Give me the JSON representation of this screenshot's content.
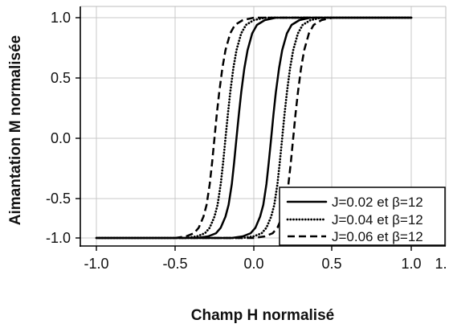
{
  "chart_data": {
    "type": "line",
    "xlabel": "Champ H normalisé",
    "ylabel": "Aimantation M normalisée",
    "xlim": [
      -1.1,
      1.2
    ],
    "ylim": [
      -1.1,
      1.1
    ],
    "x_ticks": [
      "-1.0",
      "-0.5",
      "0.0",
      "0.5",
      "1.0",
      "1."
    ],
    "y_ticks": [
      "1.0",
      "0.5",
      "0.0",
      "-0.5",
      "-1.0"
    ],
    "grid": true,
    "legend_position": "bottom-right",
    "series": [
      {
        "name": "J=0.02 et β=12",
        "style": "solid",
        "color": "#000000",
        "x": [
          1.0,
          0.14,
          0.07,
          0.02,
          -0.01,
          -0.04,
          -0.06,
          -0.08,
          -0.095,
          -0.11,
          -0.125,
          -0.14,
          -0.16,
          -0.18,
          -0.21,
          -0.24,
          -0.29,
          -0.36,
          -1.0,
          -0.14,
          -0.07,
          -0.02,
          0.01,
          0.04,
          0.06,
          0.08,
          0.095,
          0.11,
          0.125,
          0.14,
          0.16,
          0.18,
          0.21,
          0.24,
          0.29,
          0.36,
          1.0
        ],
        "y": [
          1.0,
          1.0,
          0.98,
          0.94,
          0.87,
          0.73,
          0.58,
          0.38,
          0.2,
          0.0,
          -0.2,
          -0.38,
          -0.58,
          -0.73,
          -0.87,
          -0.94,
          -0.98,
          -1.0,
          -1.0,
          -1.0,
          -0.98,
          -0.94,
          -0.87,
          -0.73,
          -0.58,
          -0.38,
          -0.2,
          0.0,
          0.2,
          0.38,
          0.58,
          0.73,
          0.87,
          0.94,
          0.98,
          1.0,
          1.0
        ]
      },
      {
        "name": "J=0.04 et β=12",
        "style": "dotted",
        "color": "#000000",
        "x": [
          1.0,
          0.07,
          0.0,
          -0.05,
          -0.08,
          -0.11,
          -0.13,
          -0.15,
          -0.165,
          -0.18,
          -0.195,
          -0.21,
          -0.23,
          -0.25,
          -0.28,
          -0.31,
          -0.36,
          -0.43,
          -1.0,
          -0.07,
          0.0,
          0.05,
          0.08,
          0.11,
          0.13,
          0.15,
          0.165,
          0.18,
          0.195,
          0.21,
          0.23,
          0.25,
          0.28,
          0.31,
          0.36,
          0.43,
          1.0
        ],
        "y": [
          1.0,
          1.0,
          0.98,
          0.94,
          0.87,
          0.73,
          0.58,
          0.38,
          0.2,
          0.0,
          -0.2,
          -0.38,
          -0.58,
          -0.73,
          -0.87,
          -0.94,
          -0.98,
          -1.0,
          -1.0,
          -1.0,
          -0.98,
          -0.94,
          -0.87,
          -0.73,
          -0.58,
          -0.38,
          -0.2,
          0.0,
          0.2,
          0.38,
          0.58,
          0.73,
          0.87,
          0.94,
          0.98,
          1.0,
          1.0
        ]
      },
      {
        "name": "J=0.06 et β=12",
        "style": "dashed",
        "color": "#000000",
        "x": [
          1.0,
          0.0,
          -0.07,
          -0.12,
          -0.15,
          -0.18,
          -0.2,
          -0.22,
          -0.235,
          -0.25,
          -0.265,
          -0.28,
          -0.3,
          -0.32,
          -0.35,
          -0.38,
          -0.43,
          -0.5,
          -1.0,
          0.0,
          0.07,
          0.12,
          0.15,
          0.18,
          0.2,
          0.22,
          0.235,
          0.25,
          0.265,
          0.28,
          0.3,
          0.32,
          0.35,
          0.38,
          0.43,
          0.5,
          1.0
        ],
        "y": [
          1.0,
          1.0,
          0.98,
          0.94,
          0.87,
          0.73,
          0.58,
          0.38,
          0.2,
          0.0,
          -0.2,
          -0.38,
          -0.58,
          -0.73,
          -0.87,
          -0.94,
          -0.98,
          -1.0,
          -1.0,
          -1.0,
          -0.98,
          -0.94,
          -0.87,
          -0.73,
          -0.58,
          -0.38,
          -0.2,
          0.0,
          0.2,
          0.38,
          0.58,
          0.73,
          0.87,
          0.94,
          0.98,
          1.0,
          1.0
        ]
      }
    ]
  }
}
